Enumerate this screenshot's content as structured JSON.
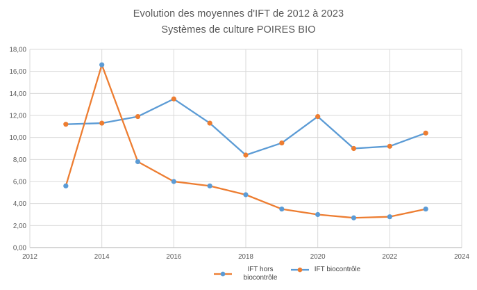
{
  "title": {
    "line1": "Evolution des moyennes d'IFT de 2012 à 2023",
    "line2": "Systèmes de culture POIRES BIO"
  },
  "chart_data": {
    "type": "line",
    "title": "Evolution des moyennes d'IFT de 2012 à 2023 — Systèmes de culture POIRES BIO",
    "x": [
      2013,
      2014,
      2015,
      2016,
      2017,
      2018,
      2019,
      2020,
      2021,
      2022,
      2023
    ],
    "series": [
      {
        "name": "IFT hors biocontrôle",
        "values": [
          5.6,
          16.6,
          7.8,
          6.0,
          5.6,
          4.8,
          3.5,
          3.0,
          2.7,
          2.8,
          3.5
        ],
        "line_color": "#ED7D31",
        "marker_color": "#5B9BD5"
      },
      {
        "name": "IFT biocontrôle",
        "values": [
          11.2,
          11.3,
          11.9,
          13.5,
          11.3,
          8.4,
          9.5,
          11.9,
          9.0,
          9.2,
          10.4
        ],
        "line_color": "#5B9BD5",
        "marker_color": "#ED7D31"
      }
    ],
    "xlim": [
      2012,
      2024
    ],
    "ylim": [
      0,
      18
    ],
    "x_ticks": [
      {
        "value": 2012,
        "label": "2012"
      },
      {
        "value": 2014,
        "label": "2014"
      },
      {
        "value": 2016,
        "label": "2016"
      },
      {
        "value": 2018,
        "label": "2018"
      },
      {
        "value": 2020,
        "label": "2020"
      },
      {
        "value": 2022,
        "label": "2022"
      },
      {
        "value": 2024,
        "label": "2024"
      }
    ],
    "y_ticks": [
      {
        "value": 0,
        "label": "0,00"
      },
      {
        "value": 2,
        "label": "2,00"
      },
      {
        "value": 4,
        "label": "4,00"
      },
      {
        "value": 6,
        "label": "6,00"
      },
      {
        "value": 8,
        "label": "8,00"
      },
      {
        "value": 10,
        "label": "10,00"
      },
      {
        "value": 12,
        "label": "12,00"
      },
      {
        "value": 14,
        "label": "14,00"
      },
      {
        "value": 16,
        "label": "16,00"
      },
      {
        "value": 18,
        "label": "18,00"
      }
    ],
    "grid": true,
    "legend_position": "bottom-center",
    "colors": {
      "gridline": "#D9D9D9",
      "axis_line": "#BFBFBF",
      "tick_text": "#595959",
      "title_text": "#595959",
      "legend_text": "#444444",
      "background": "#FFFFFF"
    }
  }
}
